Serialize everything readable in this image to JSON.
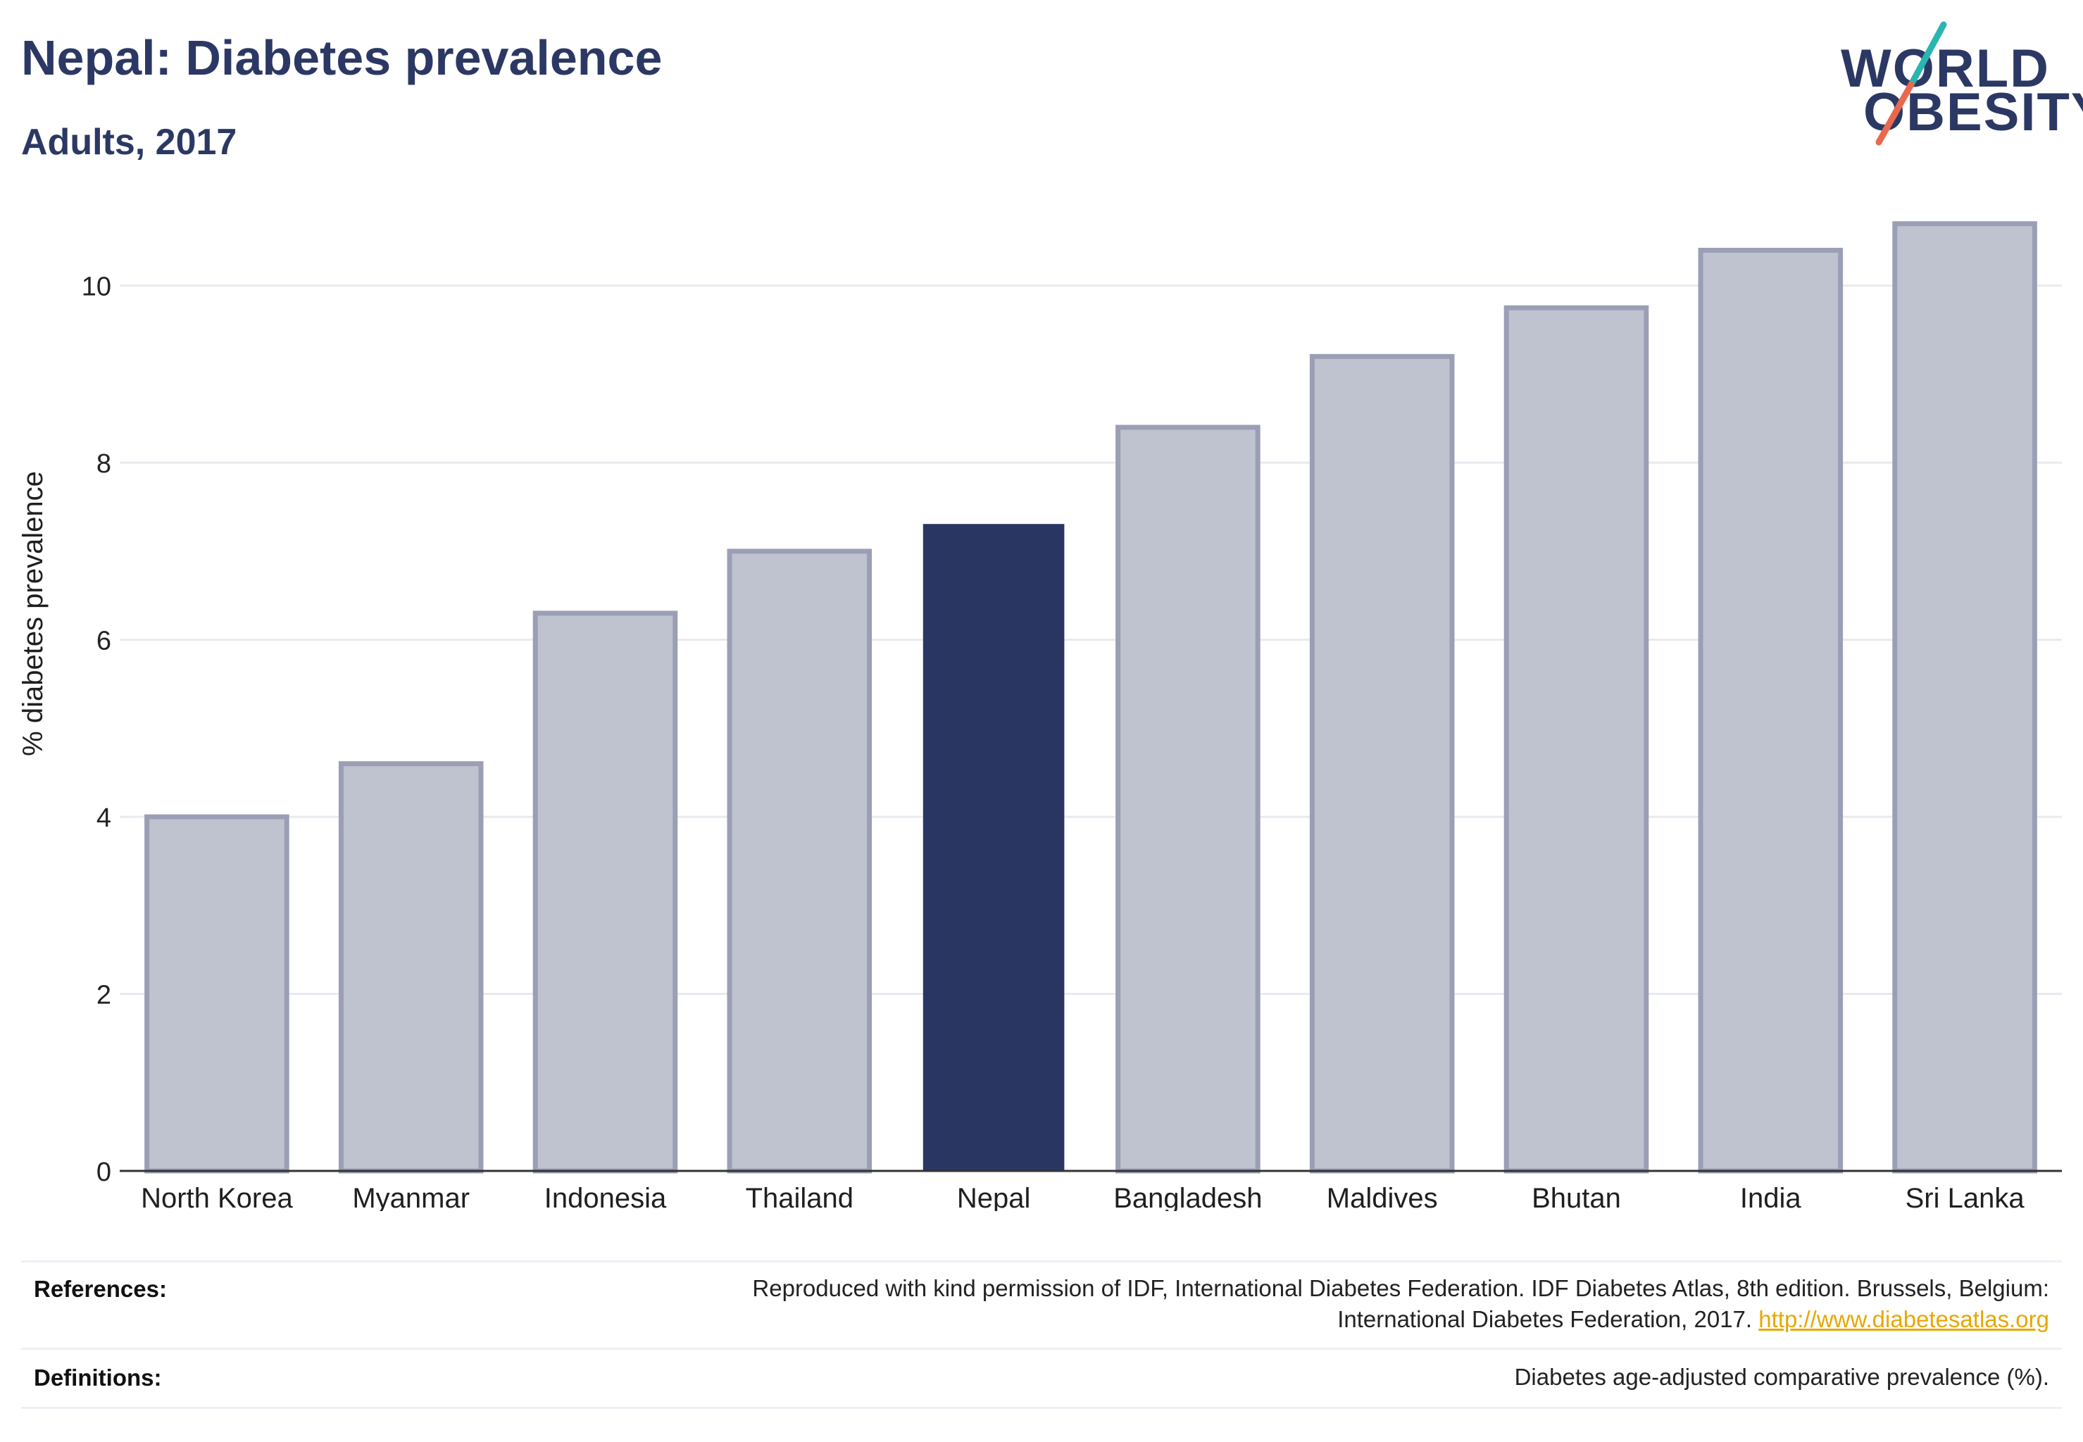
{
  "header": {
    "title": "Nepal: Diabetes prevalence",
    "subtitle": "Adults, 2017"
  },
  "logo": {
    "line1": "WORLD",
    "line2": "OBESITY",
    "slash_colors": [
      "#2bb5b0",
      "#e8694e"
    ],
    "text_color": "#2c3864"
  },
  "colors": {
    "highlight_bar": "#2a3662",
    "other_bar": "#bfc2cf",
    "other_bar_border": "#9a9fb5",
    "link": "#e6a800"
  },
  "chart_data": {
    "type": "bar",
    "ylabel": "% diabetes prevalence",
    "categories": [
      "North Korea",
      "Myanmar",
      "Indonesia",
      "Thailand",
      "Nepal",
      "Bangladesh",
      "Maldives",
      "Bhutan",
      "India",
      "Sri Lanka"
    ],
    "values": [
      4.0,
      4.6,
      6.3,
      7.0,
      7.3,
      8.4,
      9.2,
      9.75,
      10.4,
      10.7
    ],
    "highlight": "Nepal",
    "ylim": [
      0,
      11
    ],
    "yticks": [
      0,
      2,
      4,
      6,
      8,
      10
    ],
    "grid": true
  },
  "footer": {
    "references_label": "References:",
    "references_line1": "Reproduced with kind permission of IDF, International Diabetes Federation. IDF Diabetes Atlas, 8th edition. Brussels, Belgium:",
    "references_line2": "International Diabetes Federation, 2017.",
    "references_link": "http://www.diabetesatlas.org",
    "definitions_label": "Definitions:",
    "definitions_text": "Diabetes age-adjusted comparative prevalence (%)."
  }
}
